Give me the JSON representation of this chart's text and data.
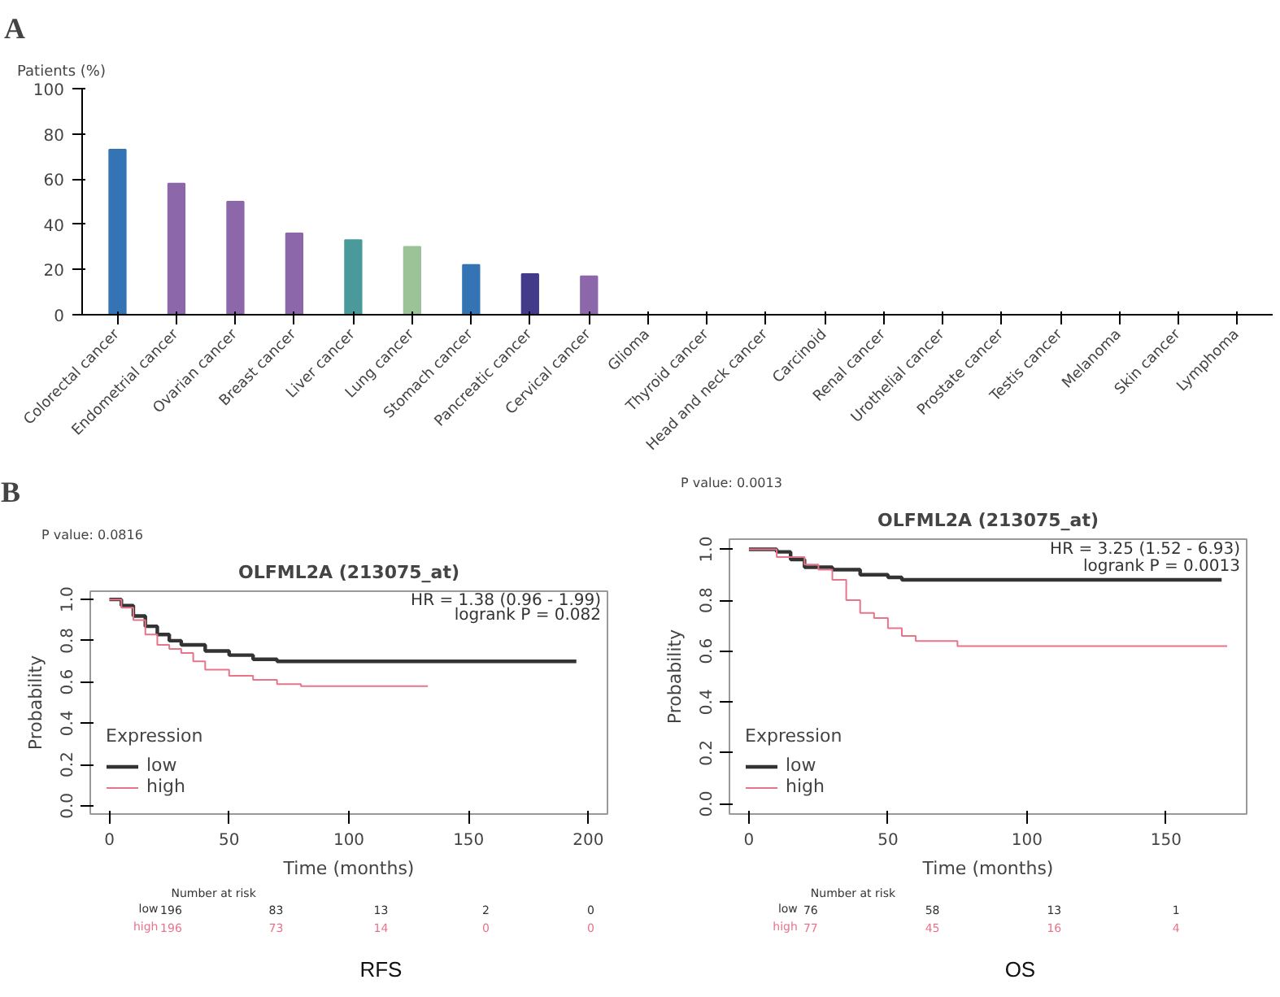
{
  "chart_data": [
    {
      "type": "bar",
      "annotations": [
        "A"
      ],
      "ylabel": "Patients (%)",
      "categories": [
        "Colorectal cancer",
        "Endometrial cancer",
        "Ovarian cancer",
        "Breast cancer",
        "Liver cancer",
        "Lung cancer",
        "Stomach cancer",
        "Pancreatic cancer",
        "Cervical cancer",
        "Glioma",
        "Thyroid cancer",
        "Head and neck cancer",
        "Carcinoid",
        "Renal cancer",
        "Urothelial cancer",
        "Prostate cancer",
        "Testis cancer",
        "Melanoma",
        "Skin cancer",
        "Lymphoma"
      ],
      "values": [
        73,
        58,
        50,
        36,
        33,
        30,
        22,
        18,
        17,
        0,
        0,
        0,
        0,
        0,
        0,
        0,
        0,
        0,
        0,
        0
      ],
      "colors": [
        "#3474b4",
        "#8c68aa",
        "#8c68aa",
        "#8c68aa",
        "#4a9a9c",
        "#9cc298",
        "#3474b4",
        "#443a8a",
        "#8c68aa",
        "#8c68aa",
        "#8c68aa",
        "#8c68aa",
        "#8c68aa",
        "#8c68aa",
        "#8c68aa",
        "#8c68aa",
        "#8c68aa",
        "#8c68aa",
        "#8c68aa",
        "#8c68aa"
      ],
      "ylim": [
        0,
        100
      ],
      "yticks": [
        0,
        20,
        40,
        60,
        80,
        100
      ],
      "grid": false
    },
    {
      "type": "step",
      "title": "OLFML2A (213075_at)",
      "subtitle": "P value: 0.0816",
      "xlabel": "Time (months)",
      "ylabel": "Probability",
      "legend_title": "Expression",
      "legend": "bottom left",
      "grid": false,
      "annotations": [
        "HR = 1.38 (0.96 - 1.99)",
        "logrank P = 0.082",
        "Number at risk",
        "low",
        "196",
        "83",
        "13",
        "2",
        "0",
        "high",
        "196",
        "73",
        "14",
        "0",
        "0",
        "RFS",
        "B"
      ],
      "xlim": [
        -8,
        208
      ],
      "xticks": [
        0,
        50,
        100,
        150,
        200
      ],
      "ylim": [
        -0.04,
        1.04
      ],
      "yticks": [
        {
          "value": 0,
          "label": "0.0"
        },
        {
          "value": 0.2,
          "label": "0.2"
        },
        {
          "value": 0.4,
          "label": "0.4"
        },
        {
          "value": 0.6,
          "label": "0.6"
        },
        {
          "value": 0.8,
          "label": "0.8"
        },
        {
          "value": 1,
          "label": "1.0"
        }
      ],
      "series": [
        {
          "name": "low",
          "color": "#333333",
          "x": [
            0,
            5,
            10,
            15,
            20,
            25,
            30,
            40,
            50,
            60,
            70,
            195
          ],
          "values": [
            1.0,
            0.97,
            0.92,
            0.87,
            0.83,
            0.8,
            0.78,
            0.75,
            0.73,
            0.71,
            0.7,
            0.7
          ]
        },
        {
          "name": "high",
          "color": "#e8748a",
          "x": [
            0,
            5,
            10,
            15,
            20,
            25,
            30,
            35,
            40,
            50,
            60,
            70,
            80,
            133
          ],
          "values": [
            1.0,
            0.96,
            0.9,
            0.83,
            0.78,
            0.76,
            0.74,
            0.7,
            0.66,
            0.63,
            0.61,
            0.59,
            0.58,
            0.58
          ]
        }
      ]
    },
    {
      "type": "step",
      "title": "OLFML2A (213075_at)",
      "subtitle": "P value: 0.0013",
      "xlabel": "Time (months)",
      "ylabel": "Probability",
      "legend_title": "Expression",
      "legend": "bottom left",
      "grid": false,
      "annotations": [
        "HR = 3.25 (1.52 - 6.93)",
        "logrank P = 0.0013",
        "Number at risk",
        "low",
        "76",
        "58",
        "13",
        "1",
        "high",
        "77",
        "45",
        "16",
        "4",
        "OS"
      ],
      "xlim": [
        -7,
        179
      ],
      "xticks": [
        0,
        50,
        100,
        150
      ],
      "ylim": [
        -0.04,
        1.04
      ],
      "yticks": [
        {
          "value": 0,
          "label": "0.0"
        },
        {
          "value": 0.2,
          "label": "0.2"
        },
        {
          "value": 0.4,
          "label": "0.4"
        },
        {
          "value": 0.6,
          "label": "0.6"
        },
        {
          "value": 0.8,
          "label": "0.8"
        },
        {
          "value": 1,
          "label": "1.0"
        }
      ],
      "series": [
        {
          "name": "low",
          "color": "#333333",
          "x": [
            0,
            10,
            15,
            20,
            30,
            40,
            50,
            55,
            170
          ],
          "values": [
            1.0,
            0.99,
            0.96,
            0.93,
            0.92,
            0.9,
            0.89,
            0.88,
            0.88
          ]
        },
        {
          "name": "high",
          "color": "#e8748a",
          "x": [
            0,
            10,
            20,
            25,
            30,
            35,
            40,
            45,
            50,
            55,
            60,
            70,
            75,
            172
          ],
          "values": [
            1.0,
            0.97,
            0.94,
            0.92,
            0.88,
            0.8,
            0.75,
            0.73,
            0.69,
            0.66,
            0.64,
            0.64,
            0.62,
            0.62
          ]
        }
      ]
    }
  ]
}
